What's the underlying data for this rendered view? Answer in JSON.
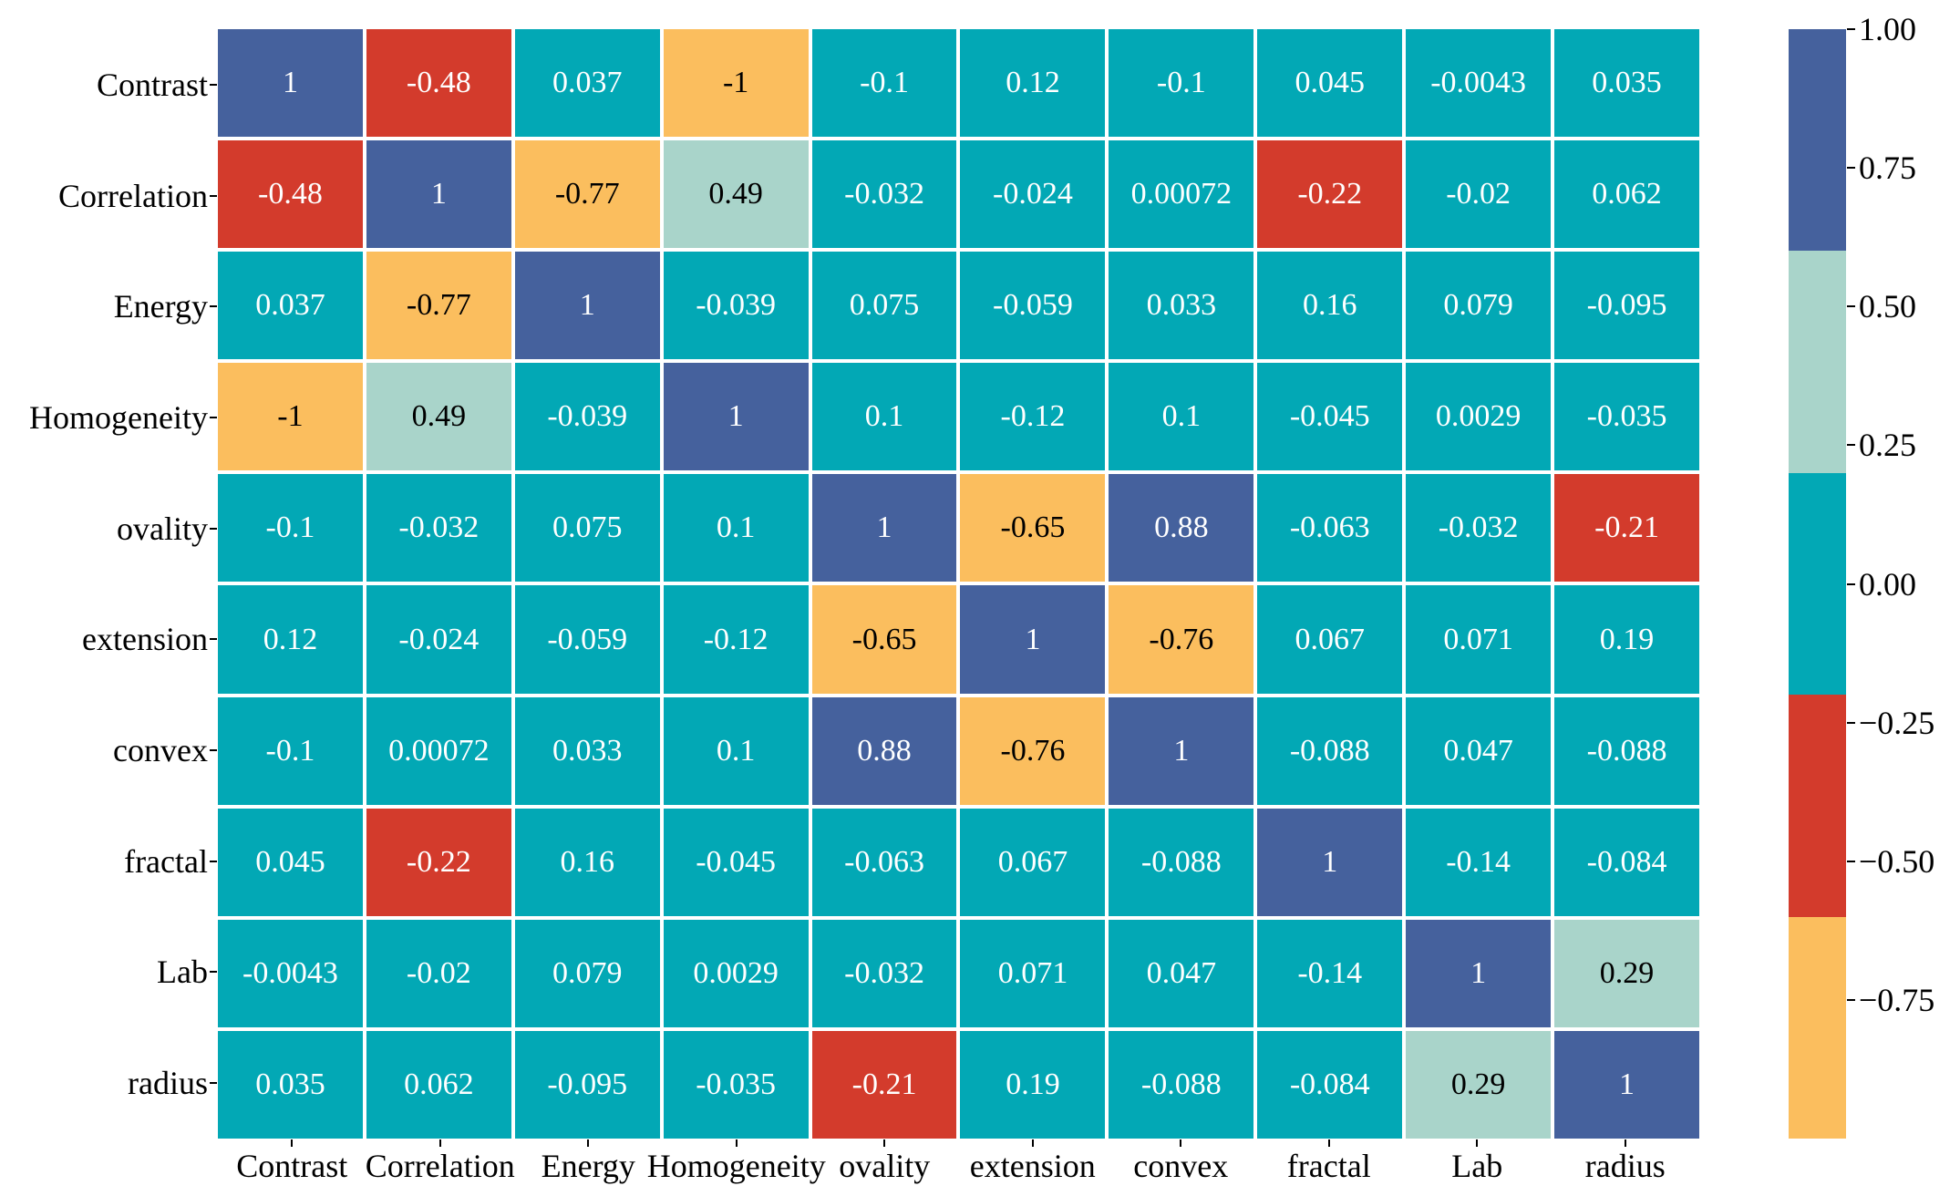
{
  "figure": {
    "background_color": "#ffffff",
    "grid_line_color": "#ffffff"
  },
  "chart_data": {
    "type": "heatmap",
    "title": "",
    "xlabel": "",
    "ylabel": "",
    "categories": [
      "Contrast",
      "Correlation",
      "Energy",
      "Homogeneity",
      "ovality",
      "extension",
      "convex",
      "fractal",
      "Lab",
      "radius"
    ],
    "matrix": [
      [
        1,
        -0.48,
        0.037,
        -1,
        -0.1,
        0.12,
        -0.1,
        0.045,
        -0.0043,
        0.035
      ],
      [
        -0.48,
        1,
        -0.77,
        0.49,
        -0.032,
        -0.024,
        0.00072,
        -0.22,
        -0.02,
        0.062
      ],
      [
        0.037,
        -0.77,
        1,
        -0.039,
        0.075,
        -0.059,
        0.033,
        0.16,
        0.079,
        -0.095
      ],
      [
        -1,
        0.49,
        -0.039,
        1,
        0.1,
        -0.12,
        0.1,
        -0.045,
        0.0029,
        -0.035
      ],
      [
        -0.1,
        -0.032,
        0.075,
        0.1,
        1,
        -0.65,
        0.88,
        -0.063,
        -0.032,
        -0.21
      ],
      [
        0.12,
        -0.024,
        -0.059,
        -0.12,
        -0.65,
        1,
        -0.76,
        0.067,
        0.071,
        0.19
      ],
      [
        -0.1,
        0.00072,
        0.033,
        0.1,
        0.88,
        -0.76,
        1,
        -0.088,
        0.047,
        -0.088
      ],
      [
        0.045,
        -0.22,
        0.16,
        -0.045,
        -0.063,
        0.067,
        -0.088,
        1,
        -0.14,
        -0.084
      ],
      [
        -0.0043,
        -0.02,
        0.079,
        0.0029,
        -0.032,
        0.071,
        0.047,
        -0.14,
        1,
        0.29
      ],
      [
        0.035,
        0.062,
        -0.095,
        -0.035,
        -0.21,
        0.19,
        -0.088,
        -0.084,
        0.29,
        1
      ]
    ],
    "value_range": [
      -1,
      1
    ],
    "color_bins": [
      {
        "name": "blue",
        "min": 0.6,
        "color": "#45619D",
        "text_color": "#ffffff"
      },
      {
        "name": "light-cyan",
        "min": 0.2,
        "color": "#A9D4CA",
        "text_color": "#000000"
      },
      {
        "name": "teal",
        "min": -0.2,
        "color": "#02A8B5",
        "text_color": "#ffffff"
      },
      {
        "name": "red",
        "min": -0.6,
        "color": "#D33B2C",
        "text_color": "#ffffff"
      },
      {
        "name": "orange",
        "min": -1.01,
        "color": "#FBBE5E",
        "text_color": "#000000"
      }
    ],
    "colorbar": {
      "position": "right",
      "tick_labels": [
        "1.00",
        "0.75",
        "0.50",
        "0.25",
        "0.00",
        "−0.25",
        "−0.50",
        "−0.75"
      ],
      "tick_values": [
        1.0,
        0.75,
        0.5,
        0.25,
        0.0,
        -0.25,
        -0.5,
        -0.75
      ],
      "segment_order_top_to_bottom": [
        "blue",
        "light-cyan",
        "teal",
        "red",
        "orange"
      ]
    },
    "axis": {
      "tick_color": "#000000",
      "label_color": "#000000"
    },
    "legend_position": "right",
    "grid": false
  }
}
